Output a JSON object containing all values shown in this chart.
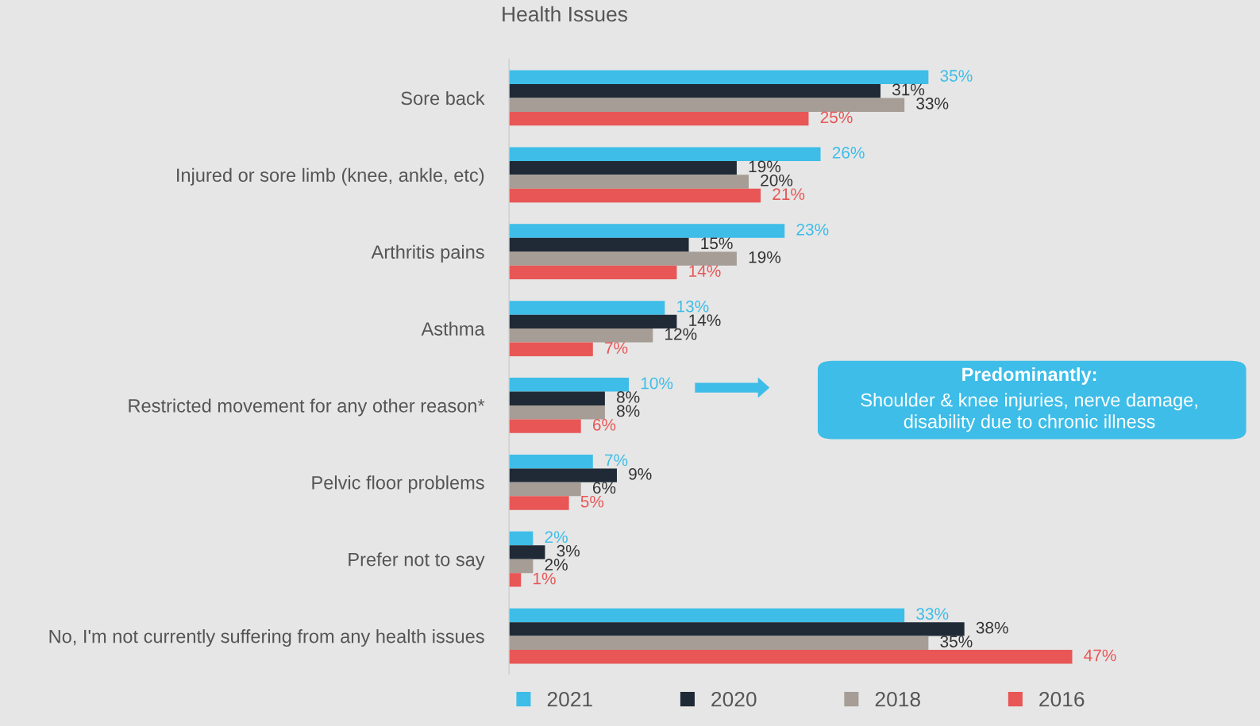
{
  "chart_data": {
    "type": "bar",
    "orientation": "horizontal",
    "title": "Health Issues",
    "legend": "bottom",
    "grid": false,
    "categories": [
      "Sore back",
      "Injured or sore limb (knee, ankle, etc)",
      "Arthritis pains",
      "Asthma",
      "Restricted movement for any other reason*",
      "Pelvic floor problems",
      "Prefer not to say",
      "No, I'm not currently suffering from any health issues"
    ],
    "series": [
      {
        "name": "2021",
        "color": "#3dbde8",
        "values": [
          35,
          26,
          23,
          13,
          10,
          7,
          2,
          33
        ],
        "value_labels": [
          "35%",
          "26%",
          "23%",
          "13%",
          "10%",
          "7%",
          "2%",
          "33%"
        ]
      },
      {
        "name": "2020",
        "color": "#1f2a36",
        "values": [
          31,
          19,
          15,
          14,
          8,
          9,
          3,
          38
        ],
        "value_labels": [
          "31%",
          "19%",
          "15%",
          "14%",
          "8%",
          "9%",
          "3%",
          "38%"
        ]
      },
      {
        "name": "2018",
        "color": "#a59d96",
        "values": [
          33,
          20,
          19,
          12,
          8,
          6,
          2,
          35
        ],
        "value_labels": [
          "33%",
          "20%",
          "19%",
          "12%",
          "8%",
          "6%",
          "2%",
          "35%"
        ]
      },
      {
        "name": "2016",
        "color": "#e85656",
        "values": [
          25,
          21,
          14,
          7,
          6,
          5,
          1,
          47
        ],
        "value_labels": [
          "25%",
          "21%",
          "14%",
          "7%",
          "6%",
          "5%",
          "1%",
          "47%"
        ]
      }
    ],
    "annotations": [
      "Predominantly:",
      "Shoulder & knee injuries, nerve damage,\ndisability due to chronic illness"
    ]
  }
}
